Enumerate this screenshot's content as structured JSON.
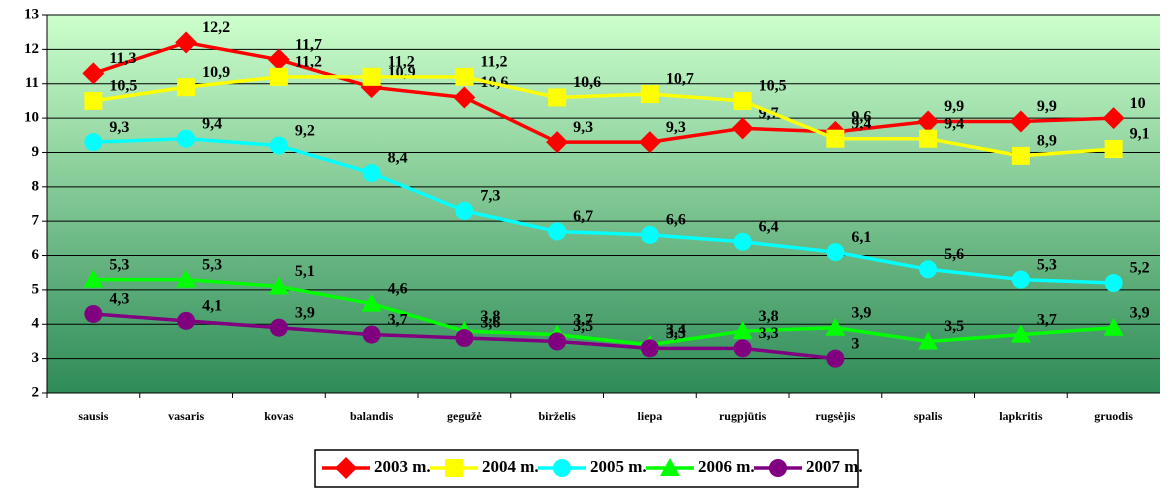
{
  "chart_data": {
    "type": "line",
    "categories": [
      "sausis",
      "vasaris",
      "kovas",
      "balandis",
      "gegužė",
      "birželis",
      "liepa",
      "rugpjūtis",
      "rugsėjis",
      "spalis",
      "lapkritis",
      "gruodis"
    ],
    "ylim": [
      2,
      13
    ],
    "yticks": [
      2,
      3,
      4,
      5,
      6,
      7,
      8,
      9,
      10,
      11,
      12,
      13
    ],
    "grid": true,
    "legend": "bottom",
    "series": [
      {
        "name": "2003 m.",
        "color": "#ff0000",
        "marker": "diamond",
        "values": [
          11.3,
          12.2,
          11.7,
          10.9,
          10.6,
          9.3,
          9.3,
          9.7,
          9.6,
          9.9,
          9.9,
          10
        ],
        "value_labels": [
          "11,3",
          "12,2",
          "11,7",
          "10,9",
          "10,6",
          "9,3",
          "9,3",
          "9,7",
          "9,6",
          "9,9",
          "9,9",
          "10"
        ]
      },
      {
        "name": "2004 m.",
        "color": "#ffff00",
        "marker": "square",
        "values": [
          10.5,
          10.9,
          11.2,
          11.2,
          11.2,
          10.6,
          10.7,
          10.5,
          9.4,
          9.4,
          8.9,
          9.1
        ],
        "value_labels": [
          "10,5",
          "10,9",
          "11,2",
          "11,2",
          "11,2",
          "10,6",
          "10,7",
          "10,5",
          "9,4",
          "9,4",
          "8,9",
          "9,1"
        ]
      },
      {
        "name": "2005 m.",
        "color": "#00ffff",
        "marker": "circle",
        "values": [
          9.3,
          9.4,
          9.2,
          8.4,
          7.3,
          6.7,
          6.6,
          6.4,
          6.1,
          5.6,
          5.3,
          5.2
        ],
        "value_labels": [
          "9,3",
          "9,4",
          "9,2",
          "8,4",
          "7,3",
          "6,7",
          "6,6",
          "6,4",
          "6,1",
          "5,6",
          "5,3",
          "5,2"
        ]
      },
      {
        "name": "2006 m.",
        "color": "#00ff00",
        "marker": "triangle",
        "values": [
          5.3,
          5.3,
          5.1,
          4.6,
          3.8,
          3.7,
          3.4,
          3.8,
          3.9,
          3.5,
          3.7,
          3.9
        ],
        "value_labels": [
          "5,3",
          "5,3",
          "5,1",
          "4,6",
          "3,8",
          "3,7",
          "3,4",
          "3,8",
          "3,9",
          "3,5",
          "3,7",
          "3,9"
        ]
      },
      {
        "name": "2007 m.",
        "color": "#800080",
        "marker": "circle",
        "values": [
          4.3,
          4.1,
          3.9,
          3.7,
          3.6,
          3.5,
          3.3,
          3.3,
          3,
          null,
          null,
          null
        ],
        "value_labels": [
          "4,3",
          "4,1",
          "3,9",
          "3,7",
          "3,6",
          "3,5",
          "3,3",
          "3,3",
          "3",
          null,
          null,
          null
        ]
      }
    ]
  }
}
